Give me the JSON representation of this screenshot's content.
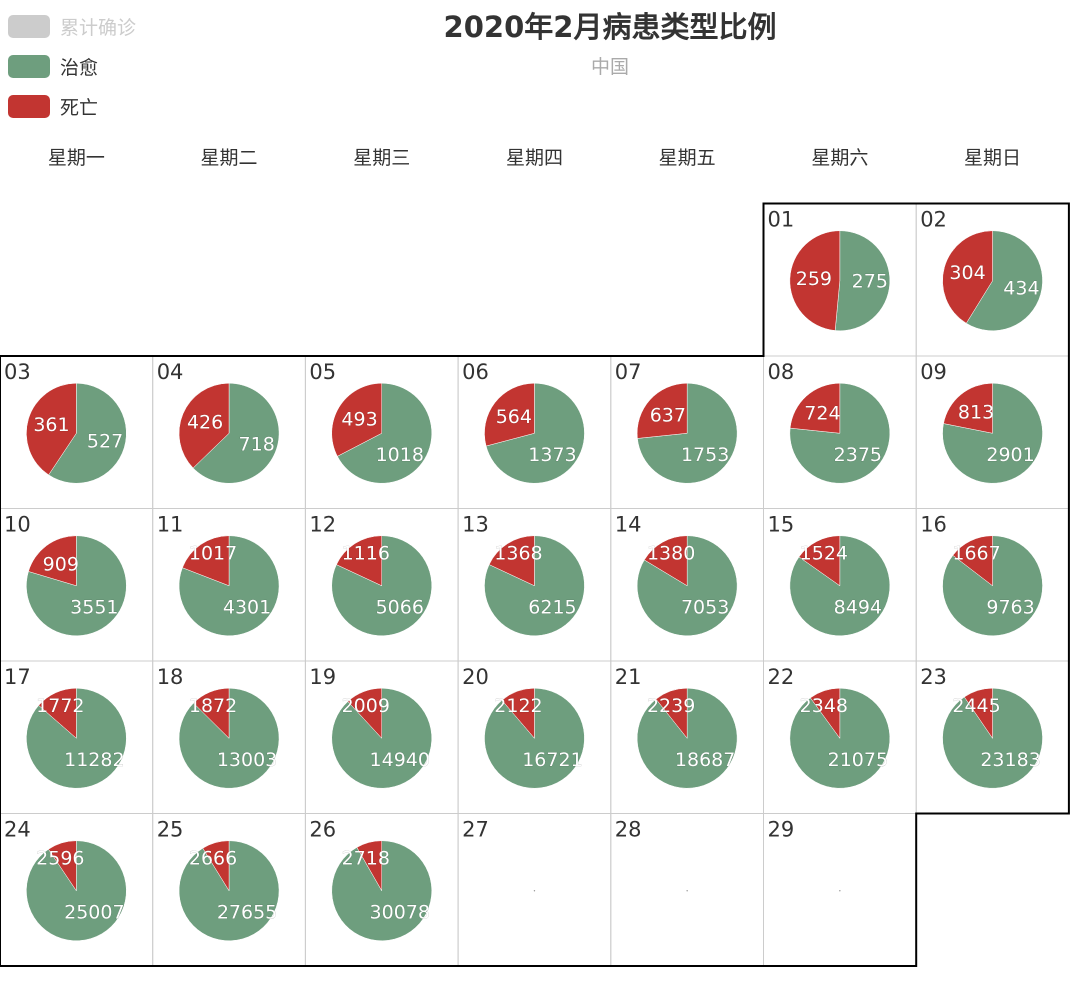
{
  "colors": {
    "confirmed": "#cccccc",
    "recovered": "#6e9e7e",
    "dead": "#c23531",
    "grid": "#cccccc",
    "border": "#000000",
    "day_text": "#333333",
    "label_text": "#ffffff"
  },
  "chart_data": {
    "type": "pie-calendar",
    "title": "2020年2月病患类型比例",
    "subtitle": "中国",
    "legend": [
      {
        "name": "累计确诊",
        "key": "confirmed",
        "active": false
      },
      {
        "name": "治愈",
        "key": "recovered",
        "active": true
      },
      {
        "name": "死亡",
        "key": "dead",
        "active": true
      }
    ],
    "weekdays": [
      "星期一",
      "星期二",
      "星期三",
      "星期四",
      "星期五",
      "星期六",
      "星期日"
    ],
    "month_start_weekday_index": 5,
    "days": [
      {
        "day": "01",
        "recovered": 275,
        "dead": 259
      },
      {
        "day": "02",
        "recovered": 434,
        "dead": 304
      },
      {
        "day": "03",
        "recovered": 527,
        "dead": 361
      },
      {
        "day": "04",
        "recovered": 718,
        "dead": 426
      },
      {
        "day": "05",
        "recovered": 1018,
        "dead": 493
      },
      {
        "day": "06",
        "recovered": 1373,
        "dead": 564
      },
      {
        "day": "07",
        "recovered": 1753,
        "dead": 637
      },
      {
        "day": "08",
        "recovered": 2375,
        "dead": 724
      },
      {
        "day": "09",
        "recovered": 2901,
        "dead": 813
      },
      {
        "day": "10",
        "recovered": 3551,
        "dead": 909
      },
      {
        "day": "11",
        "recovered": 4301,
        "dead": 1017
      },
      {
        "day": "12",
        "recovered": 5066,
        "dead": 1116
      },
      {
        "day": "13",
        "recovered": 6215,
        "dead": 1368
      },
      {
        "day": "14",
        "recovered": 7053,
        "dead": 1380
      },
      {
        "day": "15",
        "recovered": 8494,
        "dead": 1524
      },
      {
        "day": "16",
        "recovered": 9763,
        "dead": 1667
      },
      {
        "day": "17",
        "recovered": 11282,
        "dead": 1772
      },
      {
        "day": "18",
        "recovered": 13003,
        "dead": 1872
      },
      {
        "day": "19",
        "recovered": 14940,
        "dead": 2009
      },
      {
        "day": "20",
        "recovered": 16721,
        "dead": 2122
      },
      {
        "day": "21",
        "recovered": 18687,
        "dead": 2239
      },
      {
        "day": "22",
        "recovered": 21075,
        "dead": 2348
      },
      {
        "day": "23",
        "recovered": 23183,
        "dead": 2445
      },
      {
        "day": "24",
        "recovered": 25007,
        "dead": 2596
      },
      {
        "day": "25",
        "recovered": 27655,
        "dead": 2666
      },
      {
        "day": "26",
        "recovered": 30078,
        "dead": 2718
      },
      {
        "day": "27",
        "recovered": null,
        "dead": null
      },
      {
        "day": "28",
        "recovered": null,
        "dead": null
      },
      {
        "day": "29",
        "recovered": null,
        "dead": null
      }
    ]
  }
}
